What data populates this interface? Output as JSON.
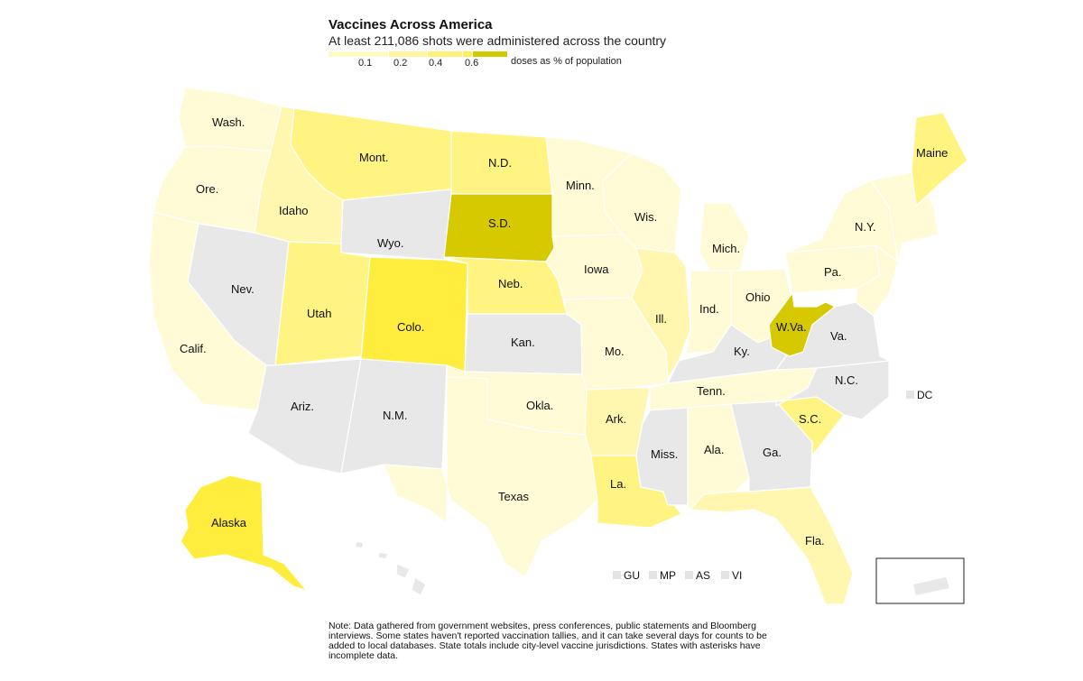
{
  "title": "Vaccines Across America",
  "subtitle": "At least 211,086 shots were administered across the country",
  "legend": {
    "ticks": [
      "0.1",
      "0.2",
      "0.4",
      "0.6"
    ],
    "unit": "doses as % of population",
    "colors": [
      "#fff9c4",
      "#fff59d",
      "#fff176",
      "#ffee58",
      "#d4c800"
    ]
  },
  "colors": {
    "no_data": "#e8e8e8",
    "level1": "#fffbd6",
    "level2": "#fff7b0",
    "level3": "#fff382",
    "level4": "#ffed3d",
    "level5": "#d6c900"
  },
  "states": {
    "wash": "Wash.",
    "ore": "Ore.",
    "calif": "Calif.",
    "idaho": "Idaho",
    "mont": "Mont.",
    "nd": "N.D.",
    "sd": "S.D.",
    "minn": "Minn.",
    "wis": "Wis.",
    "mich": "Mich.",
    "ny": "N.Y.",
    "maine": "Maine",
    "pa": "Pa.",
    "ohio": "Ohio",
    "ind": "Ind.",
    "ill": "Ill.",
    "iowa": "Iowa",
    "neb": "Neb.",
    "wyo": "Wyo.",
    "nev": "Nev.",
    "utah": "Utah",
    "colo": "Colo.",
    "kan": "Kan.",
    "mo": "Mo.",
    "wva": "W.Va.",
    "va": "Va.",
    "ky": "Ky.",
    "tenn": "Tenn.",
    "nc": "N.C.",
    "sc": "S.C.",
    "ga": "Ga.",
    "ala": "Ala.",
    "miss": "Miss.",
    "la": "La.",
    "ark": "Ark.",
    "okla": "Okla.",
    "texas": "Texas",
    "nm": "N.M.",
    "ariz": "Ariz.",
    "fla": "Fla.",
    "alaska": "Alaska"
  },
  "territories": [
    "GU",
    "MP",
    "AS",
    "VI"
  ],
  "dc": "DC",
  "note": "Note: Data gathered from government websites, press conferences, public statements and Bloomberg interviews. Some states haven't reported vaccination tallies, and it can take several days for counts to be added to local databases. State totals include city-level vaccine jurisdictions. States with asterisks have incomplete data."
}
